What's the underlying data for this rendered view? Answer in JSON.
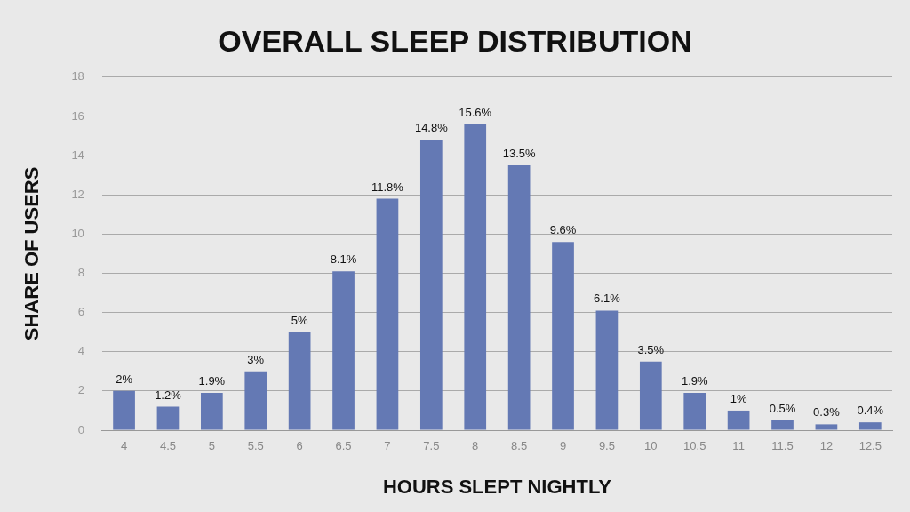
{
  "chart_data": {
    "type": "bar",
    "title": "OVERALL SLEEP DISTRIBUTION",
    "xlabel": "HOURS SLEPT NIGHTLY",
    "ylabel": "SHARE OF USERS",
    "categories": [
      "4",
      "4.5",
      "5",
      "5.5",
      "6",
      "6.5",
      "7",
      "7.5",
      "8",
      "8.5",
      "9",
      "9.5",
      "10",
      "10.5",
      "11",
      "11.5",
      "12",
      "12.5"
    ],
    "values": [
      2,
      1.2,
      1.9,
      3,
      5,
      8.1,
      11.8,
      14.8,
      15.6,
      13.5,
      9.6,
      6.1,
      3.5,
      1.9,
      1,
      0.5,
      0.3,
      0.4
    ],
    "value_labels": [
      "2%",
      "1.2%",
      "1.9%",
      "3%",
      "5%",
      "8.1%",
      "11.8%",
      "14.8%",
      "15.6%",
      "13.5%",
      "9.6%",
      "6.1%",
      "3.5%",
      "1.9%",
      "1%",
      "0.5%",
      "0.3%",
      "0.4%"
    ],
    "color": "#6479b4",
    "ylim": [
      0,
      18
    ],
    "yticks": [
      0,
      2,
      4,
      6,
      8,
      10,
      12,
      14,
      16,
      18
    ],
    "grid": "y",
    "legend": false
  }
}
